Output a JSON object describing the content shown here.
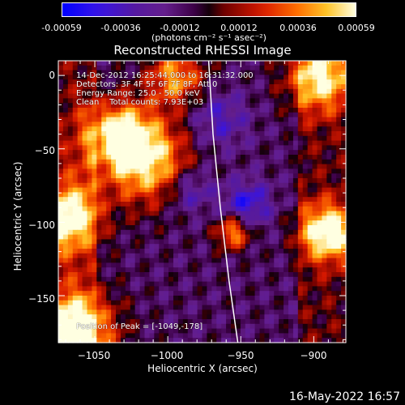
{
  "colorbar": {
    "ticks": [
      "-0.00059",
      "-0.00036",
      "-0.00012",
      "0.00012",
      "0.00036",
      "0.00059"
    ],
    "unit": "(photons cm⁻² s⁻¹ asec⁻²)"
  },
  "chart_data": {
    "type": "heatmap",
    "title": "Reconstructed RHESSI Image",
    "xlabel": "Heliocentric X (arcsec)",
    "ylabel": "Heliocentric Y (arcsec)",
    "xlim": [
      -1075,
      -878
    ],
    "ylim": [
      -182,
      10
    ],
    "x_ticks": [
      -1050,
      -1000,
      -950,
      -900
    ],
    "y_ticks": [
      0,
      -50,
      -100,
      -150
    ],
    "x_tick_labels": [
      "−1050",
      "−1000",
      "−950",
      "−900"
    ],
    "y_tick_labels": [
      "0",
      "−50",
      "−100",
      "−150"
    ],
    "colorbar_range": [
      -0.00059,
      0.00059
    ],
    "limb_curve": [
      [
        -972,
        10
      ],
      [
        -969,
        -40
      ],
      [
        -964,
        -90
      ],
      [
        -958,
        -140
      ],
      [
        -952,
        -182
      ]
    ],
    "annotations": {
      "time_range": "14-Dec-2012 16:25:44.000 to 16:31:32.000",
      "detectors": "Detectors: 3F 4F 5F 6F 7F 8F, Att 0",
      "energy_range": "Energy Range: 25.0 - 50.0 keV",
      "clean_counts": "Clean    Total counts: 7.93E+03",
      "peak": "Position of Peak = [-1049,-178]"
    }
  },
  "timestamp": "16-May-2022 16:57"
}
